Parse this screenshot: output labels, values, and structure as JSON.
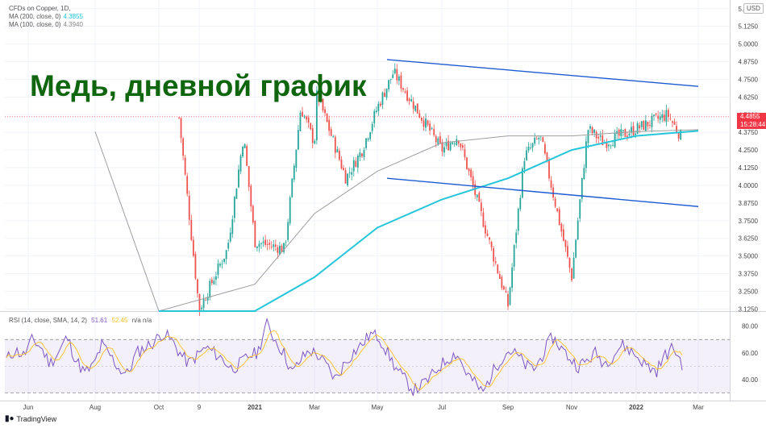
{
  "legend": {
    "symbol": "CFDs on Copper, 1D,",
    "ma200_label": "MA (200, close, 0)",
    "ma200_value": "4.3855",
    "ma100_label": "MA (100, close, 0)",
    "ma100_value": "4.3940",
    "rsi_label": "RSI (14, close, SMA, 14, 2)",
    "rsi_value": "51.61",
    "rsi_sma_value": "52.45",
    "rsi_na": "n/a  n/a"
  },
  "overlay_title": "Медь, дневной график",
  "currency": "USD",
  "last_price": {
    "value": "4.4855",
    "countdown": "15:28:44"
  },
  "branding": "TradingView",
  "colors": {
    "up": "#26a69a",
    "down": "#ef5350",
    "ma200": "#26c6da",
    "ma100": "#9e9e9e",
    "channel": "#1e5bd1",
    "rsi": "#7e57c2",
    "rsi_sma": "#fbc02d",
    "title": "#10650f"
  },
  "chart_data": [
    {
      "type": "candlestick",
      "y_axis_ticks": [
        "5.2500",
        "5.1250",
        "5.0000",
        "4.8750",
        "4.7500",
        "4.6250",
        "4.5000",
        "4.3750",
        "4.2500",
        "4.1250",
        "4.0000",
        "3.8750",
        "3.7500",
        "3.6250",
        "3.5000",
        "3.3750",
        "3.2500",
        "3.1250"
      ],
      "ylim": [
        3.11,
        5.3
      ],
      "x_axis_ticks": [
        "Jun",
        "Aug",
        "Oct",
        "9",
        "2021",
        "Mar",
        "May",
        "Jul",
        "Sep",
        "Nov",
        "2022",
        "Mar"
      ],
      "close_path": [
        [
          "Sep",
          3.15
        ],
        [
          "9",
          3.12
        ],
        [
          "Nov",
          3.35
        ],
        [
          "Dec",
          3.55
        ],
        [
          "2021",
          3.6
        ],
        [
          "Feb",
          3.55
        ],
        [
          "Mar",
          4.3
        ],
        [
          "Mar",
          4.15
        ],
        [
          "Apr",
          4.05
        ],
        [
          "Apr",
          4.25
        ],
        [
          "May",
          4.55
        ],
        [
          "May",
          4.8
        ],
        [
          "Jun",
          4.55
        ],
        [
          "Jun",
          4.3
        ],
        [
          "Jul",
          4.25
        ],
        [
          "Jul",
          4.35
        ],
        [
          "Aug",
          4.5
        ],
        [
          "Aug",
          4.3
        ],
        [
          "Sep",
          4.2
        ],
        [
          "Sep",
          4.35
        ],
        [
          "Oct",
          4.3
        ],
        [
          "Oct",
          4.75
        ],
        [
          "Nov",
          4.4
        ],
        [
          "Nov",
          4.3
        ],
        [
          "Dec",
          4.35
        ],
        [
          "2022",
          4.4
        ],
        [
          "Jan",
          4.5
        ],
        [
          "Feb",
          4.55
        ],
        [
          "Feb",
          4.65
        ],
        [
          "Mar",
          4.49
        ]
      ],
      "ma200_path": [
        [
          "Oct",
          2.9
        ],
        [
          "2021",
          3.05
        ],
        [
          "Mar",
          3.35
        ],
        [
          "May",
          3.7
        ],
        [
          "Jul",
          3.9
        ],
        [
          "Sep",
          4.05
        ],
        [
          "Nov",
          4.25
        ],
        [
          "2022",
          4.35
        ],
        [
          "Mar",
          4.3855
        ]
      ],
      "ma100_path": [
        [
          "Oct",
          3.0
        ],
        [
          "2021",
          3.3
        ],
        [
          "Mar",
          3.8
        ],
        [
          "May",
          4.1
        ],
        [
          "Jul",
          4.3
        ],
        [
          "Aug",
          4.38
        ],
        [
          "Sep",
          4.35
        ],
        [
          "Nov",
          4.35
        ],
        [
          "2022",
          4.38
        ],
        [
          "Mar",
          4.394
        ]
      ],
      "channel_upper": [
        [
          "May",
          4.89
        ],
        [
          "Mar",
          4.7
        ]
      ],
      "channel_lower": [
        [
          "May",
          4.05
        ],
        [
          "Mar",
          3.85
        ]
      ]
    },
    {
      "type": "line",
      "name_shown": "RSI",
      "y_axis_ticks": [
        "80.00",
        "60.00",
        "40.00"
      ],
      "ylim": [
        25,
        90
      ],
      "band": [
        30,
        70
      ],
      "midline": 50,
      "rsi": [
        55,
        62,
        58,
        70,
        64,
        52,
        60,
        72,
        55,
        45,
        50,
        66,
        58,
        48,
        44,
        60,
        64,
        68,
        75,
        70,
        60,
        52,
        58,
        64,
        60,
        55,
        48,
        52,
        58,
        60,
        82,
        70,
        60,
        45,
        55,
        62,
        58,
        50,
        40,
        52,
        60,
        66,
        74,
        72,
        60,
        48,
        40,
        32,
        36,
        42,
        50,
        56,
        60,
        46,
        38,
        30,
        44,
        55,
        62,
        58,
        50,
        48,
        60,
        72,
        64,
        56,
        50,
        54,
        60,
        52,
        58,
        66,
        62,
        56,
        50,
        46,
        58,
        64,
        52
      ]
    }
  ]
}
